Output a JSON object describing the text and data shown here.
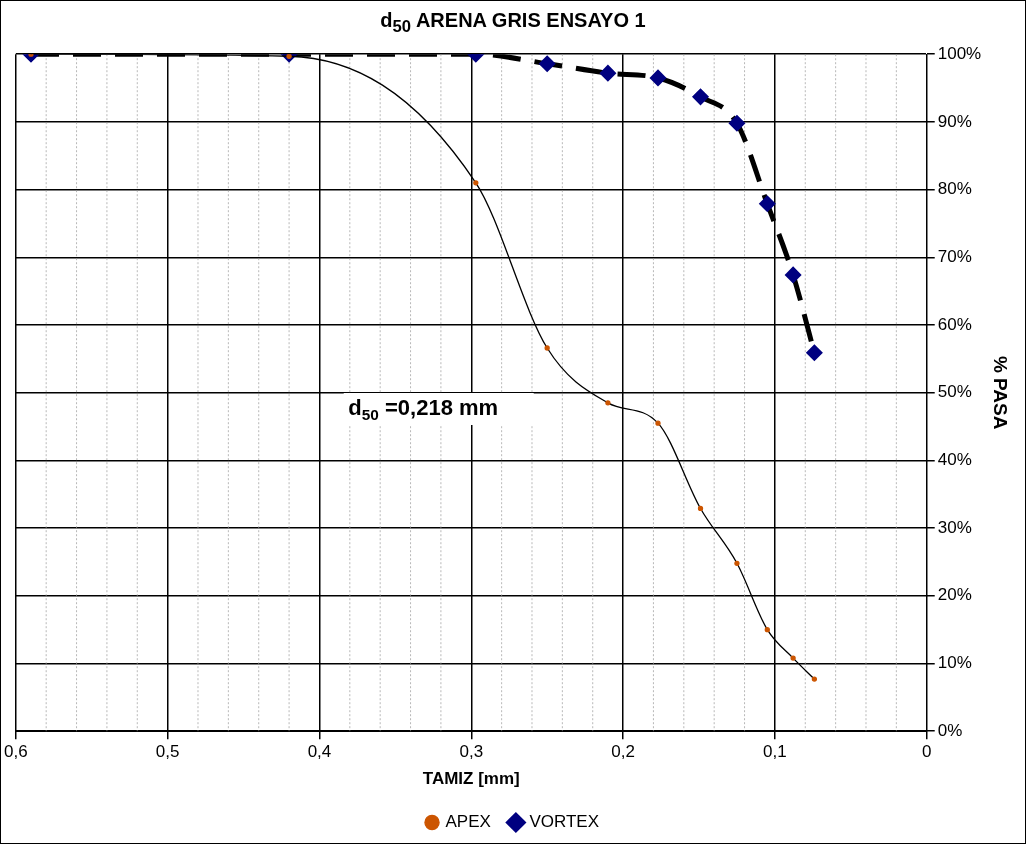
{
  "chart_data": {
    "type": "line",
    "title": "d$_{50}$ ARENA GRIS ENSAYO 1",
    "xlabel": "TAMIZ [mm]",
    "ylabel": "% PASA",
    "x": [
      0.59,
      0.42,
      0.297,
      0.25,
      0.21,
      0.177,
      0.149,
      0.125,
      0.105,
      0.088,
      0.074
    ],
    "series": [
      {
        "name": "VORTEX",
        "color": "#000080",
        "marker": "diamond",
        "line_style": "dashed",
        "values": [
          100,
          100,
          100,
          98.6,
          97.2,
          96.5,
          93.7,
          89.8,
          77.9,
          67.4,
          55.9
        ]
      },
      {
        "name": "APEX",
        "color": "#cc5500",
        "marker": "circle",
        "line_style": "solid",
        "values": [
          100,
          99.7,
          81,
          56.6,
          48.5,
          45.5,
          32.9,
          24.8,
          15,
          10.8,
          7.7
        ]
      }
    ],
    "xlim": [
      0.6,
      0
    ],
    "xticks": [
      {
        "value": 0.6,
        "label": "0,6"
      },
      {
        "value": 0.5,
        "label": "0,5"
      },
      {
        "value": 0.4,
        "label": "0,4"
      },
      {
        "value": 0.3,
        "label": "0,3"
      },
      {
        "value": 0.2,
        "label": "0,2"
      },
      {
        "value": 0.1,
        "label": "0,1"
      },
      0
    ],
    "ylim": [
      0,
      100
    ],
    "yticks": [
      {
        "value": 0,
        "label": "0%"
      },
      {
        "value": 10,
        "label": "10%"
      },
      {
        "value": 20,
        "label": "20%"
      },
      {
        "value": 30,
        "label": "30%"
      },
      {
        "value": 40,
        "label": "40%"
      },
      {
        "value": 50,
        "label": "50%"
      },
      {
        "value": 60,
        "label": "60%"
      },
      {
        "value": 70,
        "label": "70%"
      },
      {
        "value": 80,
        "label": "80%"
      },
      {
        "value": 90,
        "label": "90%"
      },
      {
        "value": 100,
        "label": "100%"
      }
    ],
    "annotations": [
      "d$_{50}$ =0,218 mm"
    ],
    "grid": true,
    "legend": "bottom"
  }
}
